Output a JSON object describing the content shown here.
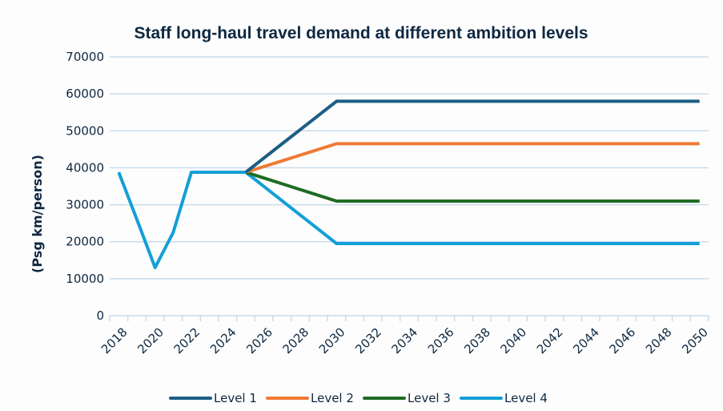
{
  "chart_data": {
    "type": "line",
    "title": "Staff long-haul travel demand at different ambition levels",
    "xlabel": "",
    "ylabel": "(Psg km/person)",
    "ylim": [
      0,
      70000
    ],
    "yticks": [
      0,
      10000,
      20000,
      30000,
      40000,
      50000,
      60000,
      70000
    ],
    "ytick_labels": [
      "0",
      "10000",
      "20000",
      "30000",
      "40000",
      "50000",
      "60000",
      "70000"
    ],
    "grid": true,
    "legend_position": "bottom",
    "x": [
      2018,
      2019,
      2020,
      2021,
      2022,
      2023,
      2024,
      2025,
      2026,
      2027,
      2028,
      2029,
      2030,
      2031,
      2032,
      2033,
      2034,
      2035,
      2036,
      2037,
      2038,
      2039,
      2040,
      2041,
      2042,
      2043,
      2044,
      2045,
      2046,
      2047,
      2048,
      2049,
      2050
    ],
    "xtick_labels": [
      "2018",
      "2020",
      "2022",
      "2024",
      "2026",
      "2028",
      "2030",
      "2032",
      "2034",
      "2036",
      "2038",
      "2040",
      "2042",
      "2044",
      "2046",
      "2048",
      "2050"
    ],
    "series": [
      {
        "name": "Level 1",
        "color": "#1b5e84",
        "values": [
          null,
          null,
          null,
          null,
          null,
          null,
          null,
          38800,
          42640,
          46480,
          50320,
          54160,
          58000,
          58000,
          58000,
          58000,
          58000,
          58000,
          58000,
          58000,
          58000,
          58000,
          58000,
          58000,
          58000,
          58000,
          58000,
          58000,
          58000,
          58000,
          58000,
          58000,
          58000
        ]
      },
      {
        "name": "Level 2",
        "color": "#ee7a35",
        "values": [
          null,
          null,
          null,
          null,
          null,
          null,
          null,
          38800,
          40340,
          41880,
          43420,
          44960,
          46500,
          46500,
          46500,
          46500,
          46500,
          46500,
          46500,
          46500,
          46500,
          46500,
          46500,
          46500,
          46500,
          46500,
          46500,
          46500,
          46500,
          46500,
          46500,
          46500,
          46500
        ]
      },
      {
        "name": "Level 3",
        "color": "#1f6b24",
        "values": [
          null,
          null,
          null,
          null,
          null,
          null,
          null,
          38800,
          37240,
          35680,
          34120,
          32560,
          31000,
          31000,
          31000,
          31000,
          31000,
          31000,
          31000,
          31000,
          31000,
          31000,
          31000,
          31000,
          31000,
          31000,
          31000,
          31000,
          31000,
          31000,
          31000,
          31000,
          31000
        ]
      },
      {
        "name": "Level 4",
        "color": "#149fd8",
        "values": [
          38800,
          26000,
          13000,
          22500,
          38800,
          38800,
          38800,
          38800,
          34940,
          31080,
          27220,
          23360,
          19500,
          19500,
          19500,
          19500,
          19500,
          19500,
          19500,
          19500,
          19500,
          19500,
          19500,
          19500,
          19500,
          19500,
          19500,
          19500,
          19500,
          19500,
          19500,
          19500,
          19500
        ]
      }
    ]
  }
}
